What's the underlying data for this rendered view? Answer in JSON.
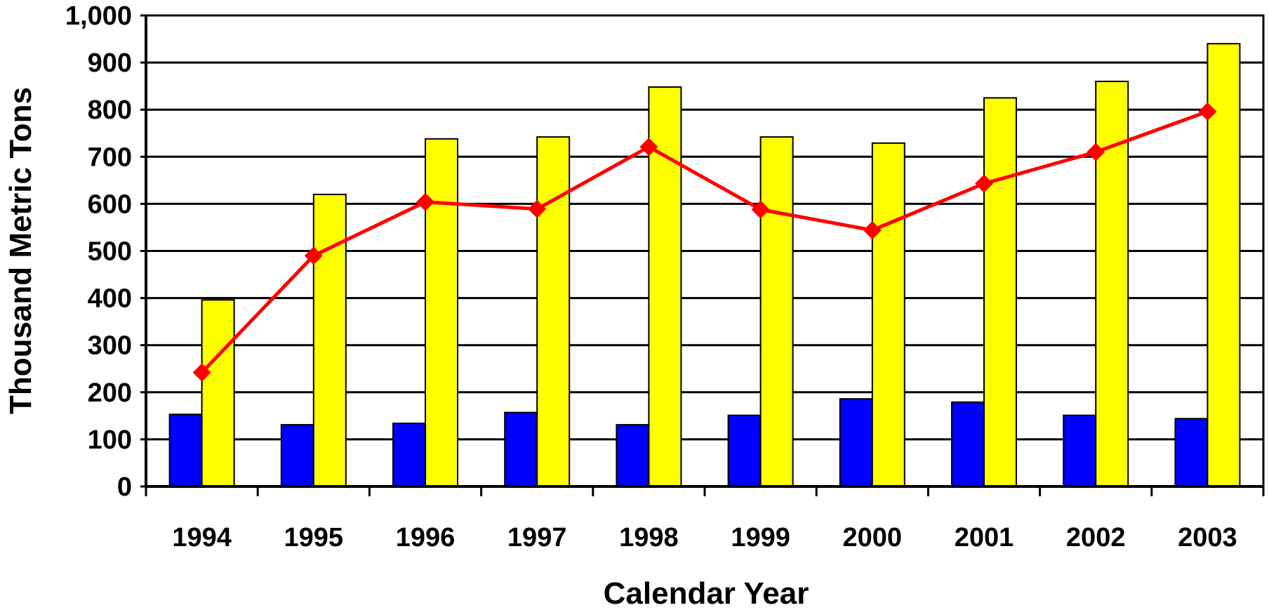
{
  "chart_data": {
    "type": "bar",
    "title": "",
    "xlabel": "Calendar Year",
    "ylabel": "Thousand Metric Tons",
    "ylim": [
      0,
      1000
    ],
    "yticks": [
      0,
      100,
      200,
      300,
      400,
      500,
      600,
      700,
      800,
      900,
      1000
    ],
    "ytick_labels": [
      "0",
      "100",
      "200",
      "300",
      "400",
      "500",
      "600",
      "700",
      "800",
      "900",
      "1,000"
    ],
    "categories": [
      "1994",
      "1995",
      "1996",
      "1997",
      "1998",
      "1999",
      "2000",
      "2001",
      "2002",
      "2003"
    ],
    "grid": "horizontal",
    "series": [
      {
        "type": "bar",
        "color": "#0000ff",
        "values": [
          153,
          131,
          134,
          157,
          131,
          151,
          186,
          179,
          151,
          144
        ]
      },
      {
        "type": "bar",
        "color": "#ffff00",
        "values": [
          396,
          620,
          738,
          742,
          848,
          742,
          729,
          825,
          860,
          940
        ]
      },
      {
        "type": "line",
        "color": "#ff0000",
        "marker": "diamond",
        "values": [
          242,
          490,
          604,
          589,
          721,
          588,
          544,
          643,
          710,
          796
        ]
      }
    ]
  }
}
